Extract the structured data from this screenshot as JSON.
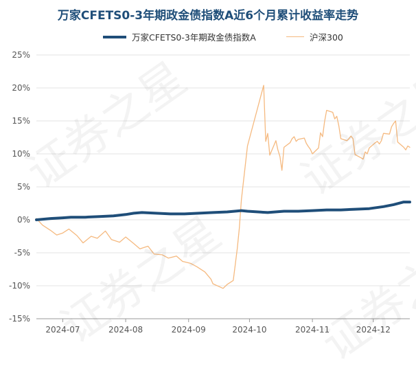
{
  "chart_data": {
    "type": "line",
    "title": "万家CFETS0-3年期政金债指数A近6个月累计收益率走势",
    "xlabel": "",
    "ylabel": "",
    "ylim": [
      -15,
      25
    ],
    "yticks": [
      -15,
      -10,
      -5,
      0,
      5,
      10,
      15,
      20,
      25
    ],
    "ytick_labels": [
      "-15%",
      "-10%",
      "-5%",
      "0%",
      "5%",
      "10%",
      "15%",
      "20%",
      "25%"
    ],
    "x_range": [
      "2024-06-18",
      "2024-12-19"
    ],
    "xtick_labels": [
      "2024-07",
      "2024-08",
      "2024-09",
      "2024-10",
      "2024-11",
      "2024-12"
    ],
    "xtick_dates": [
      "2024-07-01",
      "2024-08-01",
      "2024-09-01",
      "2024-10-01",
      "2024-11-01",
      "2024-12-01"
    ],
    "grid": "horizontal",
    "legend_position": "top",
    "series": [
      {
        "name": "万家CFETS0-3年期政金债指数A",
        "color": "#1f4e79",
        "points": [
          [
            "2024-06-18",
            0.0
          ],
          [
            "2024-06-25",
            0.2
          ],
          [
            "2024-07-01",
            0.3
          ],
          [
            "2024-07-05",
            0.4
          ],
          [
            "2024-07-12",
            0.4
          ],
          [
            "2024-07-19",
            0.5
          ],
          [
            "2024-07-26",
            0.6
          ],
          [
            "2024-08-01",
            0.8
          ],
          [
            "2024-08-05",
            1.0
          ],
          [
            "2024-08-09",
            1.1
          ],
          [
            "2024-08-16",
            1.0
          ],
          [
            "2024-08-23",
            0.9
          ],
          [
            "2024-08-30",
            0.9
          ],
          [
            "2024-09-06",
            1.0
          ],
          [
            "2024-09-13",
            1.1
          ],
          [
            "2024-09-20",
            1.2
          ],
          [
            "2024-09-27",
            1.4
          ],
          [
            "2024-09-30",
            1.3
          ],
          [
            "2024-10-10",
            1.1
          ],
          [
            "2024-10-18",
            1.3
          ],
          [
            "2024-10-25",
            1.3
          ],
          [
            "2024-11-01",
            1.4
          ],
          [
            "2024-11-08",
            1.5
          ],
          [
            "2024-11-15",
            1.5
          ],
          [
            "2024-11-22",
            1.6
          ],
          [
            "2024-11-29",
            1.7
          ],
          [
            "2024-12-06",
            2.0
          ],
          [
            "2024-12-11",
            2.3
          ],
          [
            "2024-12-16",
            2.7
          ],
          [
            "2024-12-19",
            2.7
          ]
        ]
      },
      {
        "name": "沪深300",
        "color": "#f5b97f",
        "points": [
          [
            "2024-06-18",
            0.2
          ],
          [
            "2024-06-21",
            -0.8
          ],
          [
            "2024-06-25",
            -1.6
          ],
          [
            "2024-06-28",
            -2.3
          ],
          [
            "2024-07-01",
            -2.0
          ],
          [
            "2024-07-04",
            -1.4
          ],
          [
            "2024-07-08",
            -2.4
          ],
          [
            "2024-07-11",
            -3.5
          ],
          [
            "2024-07-15",
            -2.5
          ],
          [
            "2024-07-18",
            -2.8
          ],
          [
            "2024-07-22",
            -1.7
          ],
          [
            "2024-07-25",
            -3.0
          ],
          [
            "2024-07-29",
            -3.4
          ],
          [
            "2024-08-01",
            -2.6
          ],
          [
            "2024-08-05",
            -3.6
          ],
          [
            "2024-08-08",
            -4.4
          ],
          [
            "2024-08-12",
            -4.0
          ],
          [
            "2024-08-15",
            -5.2
          ],
          [
            "2024-08-19",
            -5.3
          ],
          [
            "2024-08-22",
            -5.8
          ],
          [
            "2024-08-26",
            -5.5
          ],
          [
            "2024-08-29",
            -6.3
          ],
          [
            "2024-09-02",
            -6.6
          ],
          [
            "2024-09-05",
            -7.1
          ],
          [
            "2024-09-09",
            -7.9
          ],
          [
            "2024-09-12",
            -9.0
          ],
          [
            "2024-09-13",
            -9.7
          ],
          [
            "2024-09-18",
            -10.4
          ],
          [
            "2024-09-20",
            -9.8
          ],
          [
            "2024-09-23",
            -9.2
          ],
          [
            "2024-09-24",
            -6.8
          ],
          [
            "2024-09-25",
            -4.3
          ],
          [
            "2024-09-26",
            -1.2
          ],
          [
            "2024-09-27",
            3.0
          ],
          [
            "2024-09-30",
            11.2
          ],
          [
            "2024-10-08",
            20.4
          ],
          [
            "2024-10-09",
            11.9
          ],
          [
            "2024-10-10",
            13.1
          ],
          [
            "2024-10-11",
            9.8
          ],
          [
            "2024-10-14",
            12.0
          ],
          [
            "2024-10-15",
            10.6
          ],
          [
            "2024-10-16",
            9.6
          ],
          [
            "2024-10-17",
            7.5
          ],
          [
            "2024-10-18",
            11.0
          ],
          [
            "2024-10-21",
            11.7
          ],
          [
            "2024-10-22",
            12.3
          ],
          [
            "2024-10-23",
            12.6
          ],
          [
            "2024-10-24",
            11.9
          ],
          [
            "2024-10-25",
            12.2
          ],
          [
            "2024-10-28",
            12.4
          ],
          [
            "2024-10-29",
            11.6
          ],
          [
            "2024-10-30",
            11.1
          ],
          [
            "2024-10-31",
            10.7
          ],
          [
            "2024-11-01",
            10.0
          ],
          [
            "2024-11-04",
            10.9
          ],
          [
            "2024-11-05",
            13.2
          ],
          [
            "2024-11-06",
            12.6
          ],
          [
            "2024-11-07",
            14.9
          ],
          [
            "2024-11-08",
            16.6
          ],
          [
            "2024-11-11",
            16.3
          ],
          [
            "2024-11-12",
            15.3
          ],
          [
            "2024-11-13",
            15.7
          ],
          [
            "2024-11-14",
            14.3
          ],
          [
            "2024-11-15",
            12.3
          ],
          [
            "2024-11-18",
            12.0
          ],
          [
            "2024-11-19",
            12.3
          ],
          [
            "2024-11-20",
            12.7
          ],
          [
            "2024-11-21",
            12.3
          ],
          [
            "2024-11-22",
            9.9
          ],
          [
            "2024-11-25",
            9.4
          ],
          [
            "2024-11-26",
            9.2
          ],
          [
            "2024-11-27",
            10.3
          ],
          [
            "2024-11-28",
            10.0
          ],
          [
            "2024-11-29",
            10.9
          ],
          [
            "2024-12-02",
            11.7
          ],
          [
            "2024-12-03",
            11.9
          ],
          [
            "2024-12-04",
            11.5
          ],
          [
            "2024-12-05",
            12.0
          ],
          [
            "2024-12-06",
            13.1
          ],
          [
            "2024-12-09",
            13.0
          ],
          [
            "2024-12-10",
            14.1
          ],
          [
            "2024-12-11",
            14.6
          ],
          [
            "2024-12-12",
            15.0
          ],
          [
            "2024-12-13",
            11.8
          ],
          [
            "2024-12-16",
            11.0
          ],
          [
            "2024-12-17",
            10.6
          ],
          [
            "2024-12-18",
            11.2
          ],
          [
            "2024-12-19",
            11.0
          ]
        ]
      }
    ]
  },
  "watermark": "证券之星"
}
